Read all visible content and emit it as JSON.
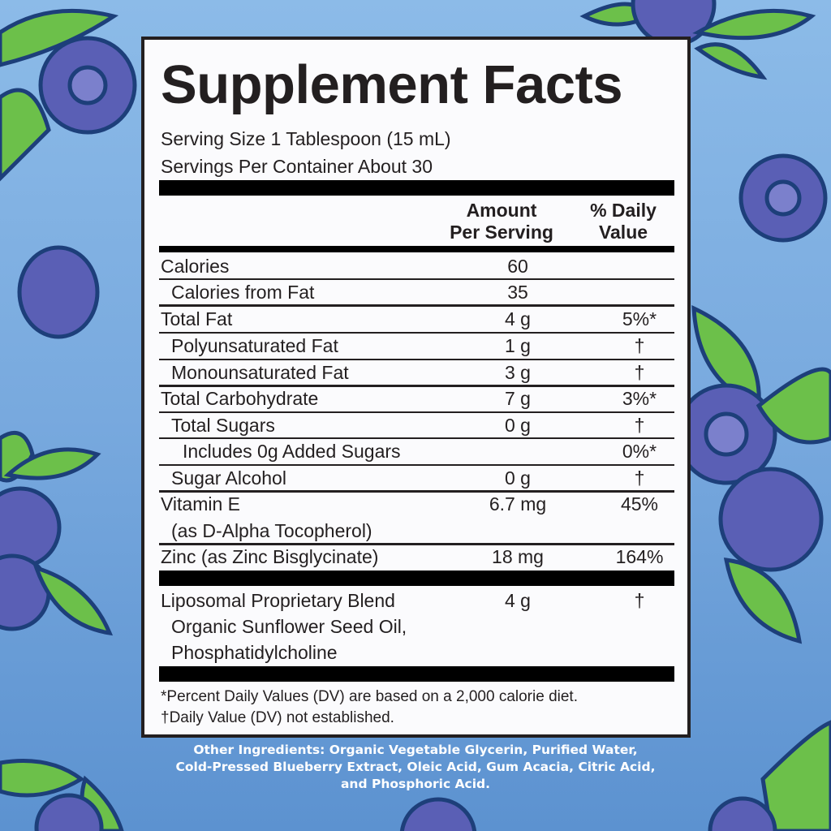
{
  "title": "Supplement Facts",
  "serving_size": "Serving Size 1 Tablespoon (15 mL)",
  "servings_per_container": "Servings Per Container About 30",
  "columns": {
    "amount": "Amount Per Serving",
    "dv": "% Daily Value",
    "amount_l1": "Amount",
    "amount_l2": "Per Serving",
    "dv_l1": "% Daily",
    "dv_l2": "Value"
  },
  "rows": [
    {
      "name": "Calories",
      "amount": "60",
      "dv": ""
    },
    {
      "name": "Calories from Fat",
      "amount": "35",
      "dv": ""
    },
    {
      "name": "Total Fat",
      "amount": "4 g",
      "dv": "5%*"
    },
    {
      "name": "Polyunsaturated Fat",
      "amount": "1 g",
      "dv": "†"
    },
    {
      "name": "Monounsaturated Fat",
      "amount": "3 g",
      "dv": "†"
    },
    {
      "name": "Total Carbohydrate",
      "amount": "7 g",
      "dv": "3%*"
    },
    {
      "name": "Total Sugars",
      "amount": "0 g",
      "dv": "†"
    },
    {
      "name": "Includes 0g Added Sugars",
      "amount": "",
      "dv": "0%*"
    },
    {
      "name": "Sugar Alcohol",
      "amount": "0 g",
      "dv": "†"
    },
    {
      "name": "Vitamin E",
      "sub": "(as D-Alpha Tocopherol)",
      "amount": "6.7 mg",
      "dv": "45%"
    },
    {
      "name": "Zinc (as Zinc Bisglycinate)",
      "amount": "18 mg",
      "dv": "164%"
    }
  ],
  "blend": {
    "name": "Liposomal Proprietary Blend",
    "line2": "Organic Sunflower Seed Oil,",
    "line3": "Phosphatidylcholine",
    "amount": "4 g",
    "dv": "†"
  },
  "footnotes": [
    "*Percent Daily Values (DV) are based on a 2,000 calorie diet.",
    "†Daily Value (DV) not established."
  ],
  "other_ingredients": [
    "Other Ingredients: Organic Vegetable Glycerin, Purified Water,",
    "Cold-Pressed Blueberry Extract, Oleic Acid, Gum Acacia, Citric Acid,",
    "and Phosphoric Acid."
  ],
  "colors": {
    "berry": "#5a5fb5",
    "leaf": "#6cc04a",
    "outline": "#1d3f7a",
    "bg_top": "#8cbbe8",
    "bg_bottom": "#5c92d0"
  }
}
